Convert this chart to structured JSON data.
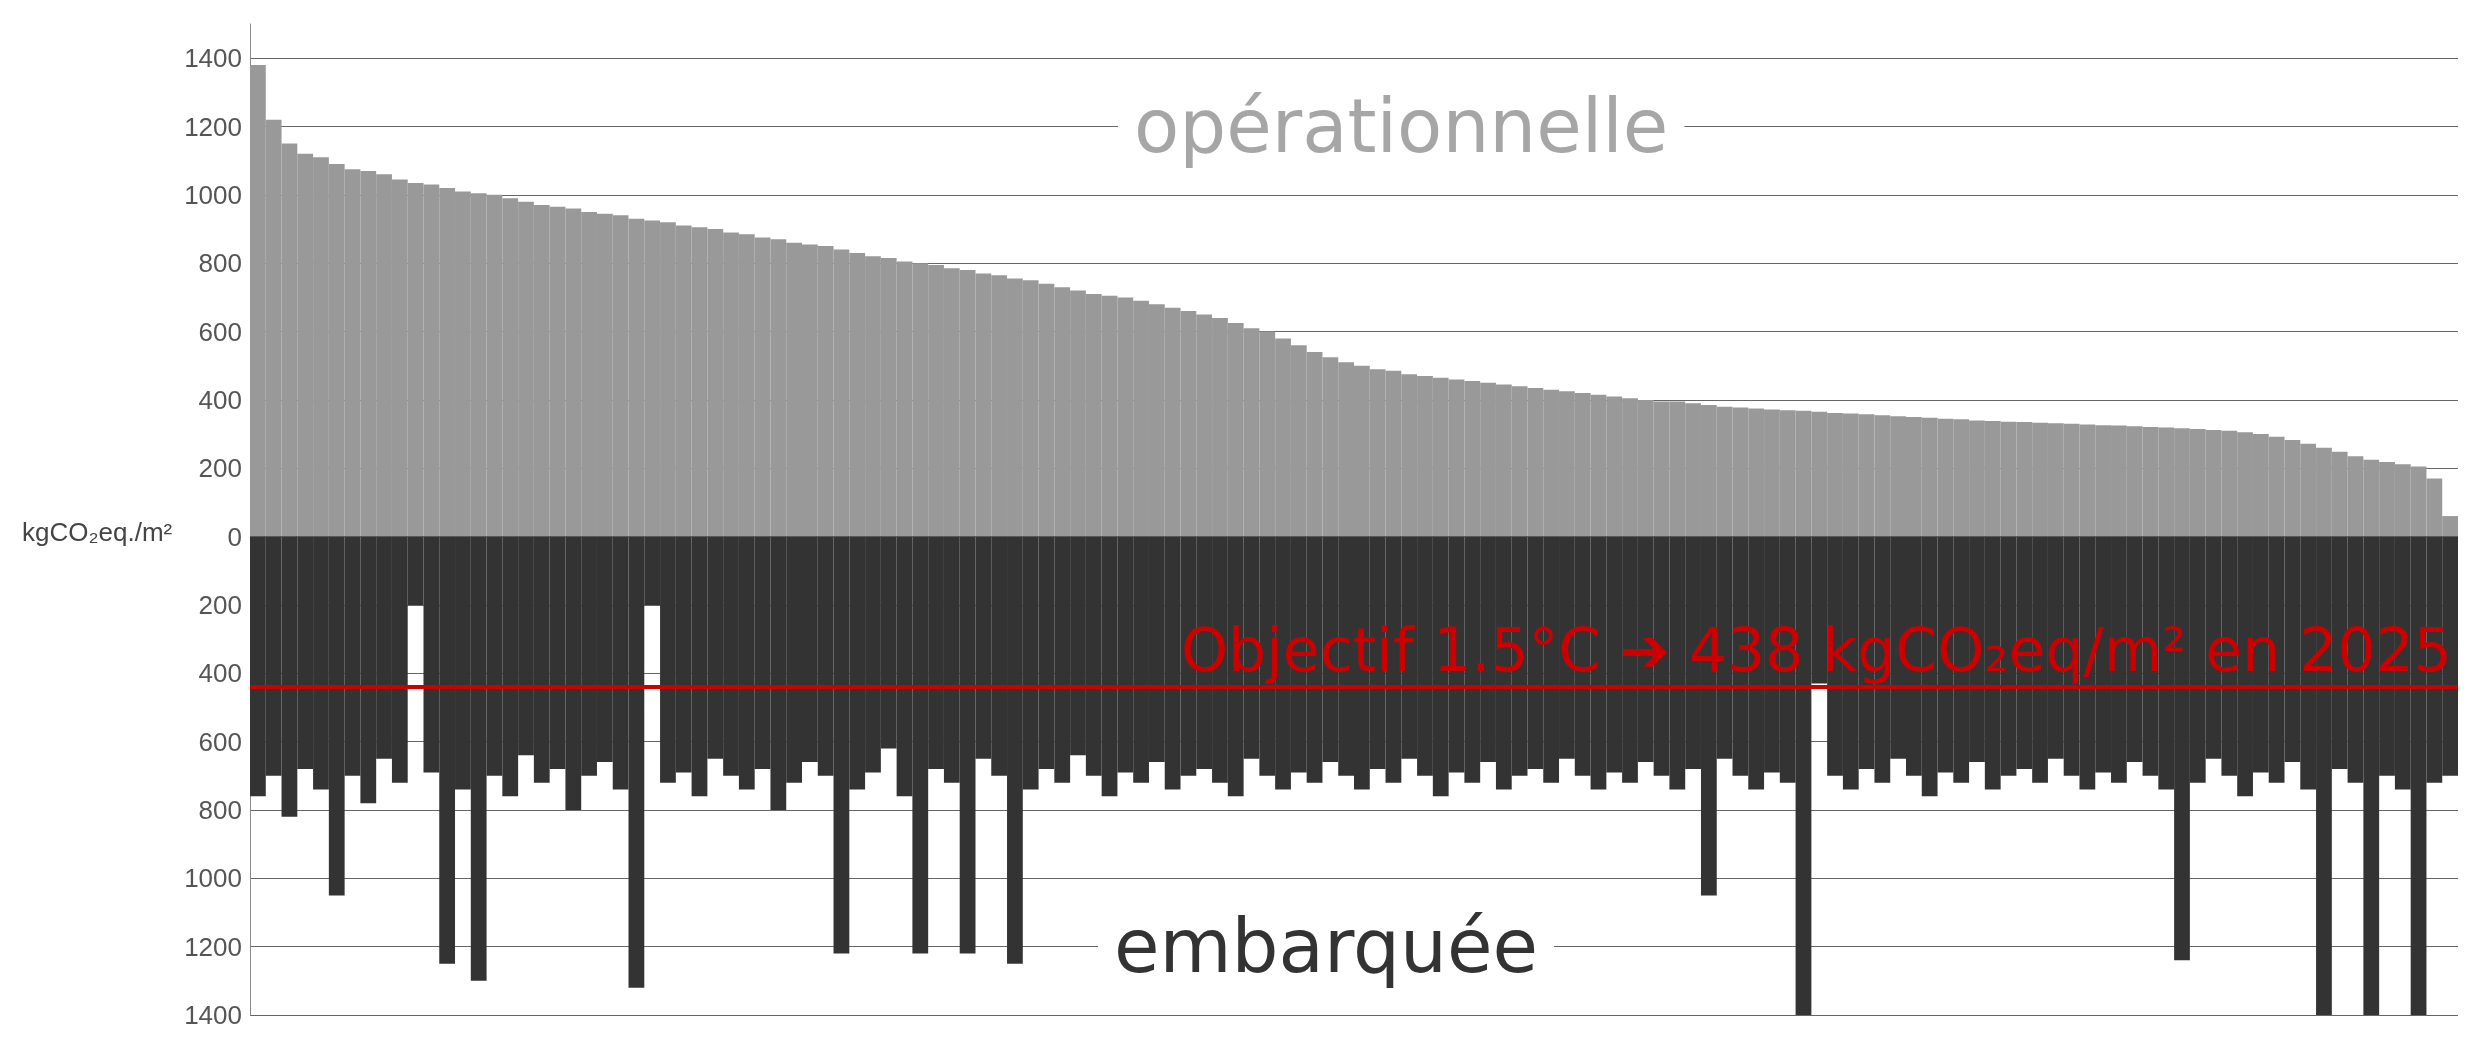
{
  "chart_data": {
    "type": "bar",
    "ylabel": "kgCO₂eq./m²",
    "categories": [
      null,
      null,
      null,
      null,
      null,
      null,
      null,
      null,
      null,
      null,
      null,
      null,
      null,
      null,
      null,
      null,
      null,
      null,
      null,
      null,
      null,
      null,
      null,
      null,
      null,
      null,
      null,
      null,
      null,
      null,
      null,
      null,
      null,
      null,
      null,
      null,
      null,
      null,
      null,
      null,
      null,
      null,
      null,
      null,
      null,
      null,
      null,
      null,
      null,
      null,
      null,
      null,
      null,
      null,
      null,
      null,
      null,
      null,
      null,
      null,
      null,
      null,
      null,
      null,
      null,
      null,
      null,
      null,
      null,
      null,
      null,
      null,
      null,
      null,
      null,
      null,
      null,
      null,
      null,
      null,
      null,
      null,
      null,
      null,
      null,
      null,
      null,
      null,
      null,
      null,
      null,
      null,
      null,
      null,
      null,
      null,
      null,
      null,
      null,
      null,
      null,
      null,
      null,
      null,
      null,
      null,
      null,
      null,
      null,
      null,
      null,
      null,
      null,
      null,
      null,
      null,
      null,
      null,
      null,
      null,
      null,
      null,
      null,
      null,
      null,
      null,
      null,
      null,
      null,
      null,
      null,
      null,
      null,
      null,
      null,
      null,
      null,
      null,
      null,
      null
    ],
    "series": [
      {
        "name": "opérationnelle",
        "color": "#999999",
        "values": [
          1380,
          1220,
          1150,
          1120,
          1110,
          1090,
          1075,
          1070,
          1060,
          1045,
          1035,
          1030,
          1020,
          1010,
          1005,
          1000,
          990,
          980,
          970,
          965,
          960,
          950,
          945,
          940,
          930,
          925,
          920,
          910,
          905,
          900,
          890,
          885,
          875,
          870,
          860,
          855,
          850,
          840,
          830,
          820,
          815,
          805,
          800,
          795,
          785,
          780,
          770,
          765,
          755,
          750,
          740,
          730,
          720,
          710,
          705,
          700,
          690,
          680,
          670,
          660,
          650,
          640,
          625,
          610,
          600,
          580,
          560,
          540,
          525,
          510,
          500,
          490,
          485,
          475,
          470,
          465,
          460,
          455,
          450,
          445,
          440,
          435,
          430,
          425,
          420,
          415,
          410,
          405,
          400,
          395,
          395,
          390,
          385,
          380,
          378,
          375,
          372,
          370,
          368,
          365,
          362,
          360,
          358,
          355,
          352,
          350,
          348,
          345,
          343,
          340,
          338,
          336,
          335,
          333,
          332,
          330,
          328,
          326,
          325,
          323,
          321,
          319,
          317,
          315,
          312,
          310,
          305,
          300,
          292,
          283,
          272,
          260,
          248,
          235,
          225,
          218,
          212,
          205,
          170,
          60
        ]
      },
      {
        "name": "embarquée",
        "color": "#333333",
        "values": [
          -760,
          -700,
          -820,
          -680,
          -740,
          -1050,
          -700,
          -780,
          -650,
          -720,
          -200,
          -690,
          -1250,
          -740,
          -1300,
          -700,
          -760,
          -640,
          -720,
          -680,
          -800,
          -700,
          -660,
          -740,
          -1320,
          -200,
          -720,
          -690,
          -760,
          -650,
          -700,
          -740,
          -680,
          -800,
          -720,
          -660,
          -700,
          -1220,
          -740,
          -690,
          -620,
          -760,
          -1220,
          -680,
          -720,
          -1220,
          -650,
          -700,
          -1250,
          -740,
          -680,
          -720,
          -640,
          -700,
          -760,
          -690,
          -720,
          -660,
          -740,
          -700,
          -680,
          -720,
          -760,
          -650,
          -700,
          -740,
          -690,
          -720,
          -660,
          -700,
          -740,
          -680,
          -720,
          -650,
          -700,
          -760,
          -690,
          -720,
          -660,
          -740,
          -700,
          -680,
          -720,
          -650,
          -700,
          -740,
          -690,
          -720,
          -660,
          -700,
          -740,
          -680,
          -1050,
          -650,
          -700,
          -740,
          -690,
          -720,
          -1400,
          -430,
          -700,
          -740,
          -680,
          -720,
          -650,
          -700,
          -760,
          -690,
          -720,
          -660,
          -740,
          -700,
          -680,
          -720,
          -650,
          -700,
          -740,
          -690,
          -720,
          -660,
          -700,
          -740,
          -1240,
          -720,
          -650,
          -700,
          -760,
          -690,
          -720,
          -660,
          -740,
          -1400,
          -680,
          -720,
          -1400,
          -700,
          -740,
          -1400,
          -720,
          -700
        ]
      }
    ],
    "ylim": [
      -1400,
      1500
    ],
    "yticks": [
      {
        "value": -1400,
        "label": "1400"
      },
      {
        "value": -1200,
        "label": "1200"
      },
      {
        "value": -1000,
        "label": "1000"
      },
      {
        "value": -800,
        "label": "800"
      },
      {
        "value": -600,
        "label": "600"
      },
      {
        "value": -400,
        "label": "400"
      },
      {
        "value": -200,
        "label": "200"
      },
      0,
      200,
      400,
      600,
      800,
      1000,
      1200,
      1400
    ],
    "grid": "y",
    "stacked": true,
    "ref_lines": [
      {
        "axis": "y",
        "value": -438,
        "label": "Objectif 1.5°C ➔ 438 kgCO₂eq/m² en 2025",
        "color": "#cc0000"
      }
    ]
  }
}
